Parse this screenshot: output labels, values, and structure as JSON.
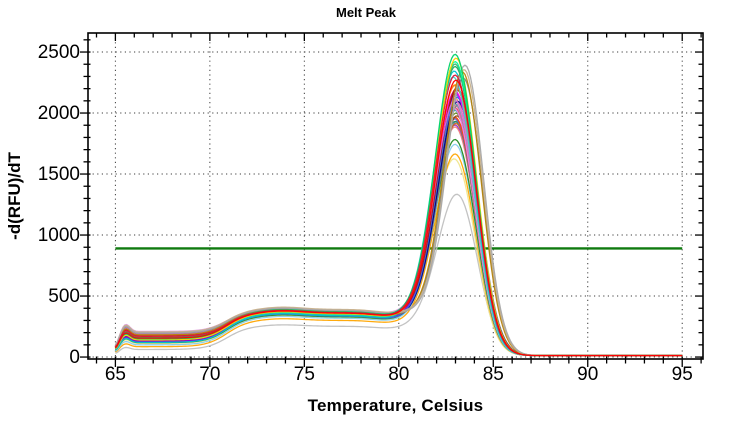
{
  "title": "Melt Peak",
  "chart_data": {
    "type": "line",
    "title": "Melt Peak",
    "xlabel": "Temperature, Celsius",
    "ylabel": "-d(RFU)/dT",
    "xlim": [
      63.55,
      96.1
    ],
    "ylim": [
      -16,
      2656
    ],
    "x_major_ticks": [
      65,
      70,
      75,
      80,
      85,
      90,
      95
    ],
    "x_minor_step": 1,
    "y_major_ticks": [
      0,
      500,
      1000,
      1500,
      2000,
      2500
    ],
    "y_minor_step": 100,
    "grid": "dotted",
    "legend": "none",
    "threshold_line": {
      "y": 890,
      "color": "#0f7a0f",
      "x_start": 65,
      "x_end": 95
    },
    "tail_end": 12,
    "series_format": "c=line color, b=baseline RFU (65-69C), s=pre-melt plateau RFU (72-80C), p=peak height RFU, t=peak temperature C, w=peak sigma C (default 1.05)",
    "series": [
      {
        "c": "#c0c0c0",
        "b": 62,
        "s": 252,
        "p": 1350,
        "t": 83.1
      },
      {
        "c": "#f0e68c",
        "b": 112,
        "s": 326,
        "p": 1640,
        "t": 82.95
      },
      {
        "c": "#ffa500",
        "b": 85,
        "s": 300,
        "p": 1680,
        "t": 83.0
      },
      {
        "c": "#87ceeb",
        "b": 100,
        "s": 318,
        "p": 1760,
        "t": 83.0
      },
      {
        "c": "#228b22",
        "b": 118,
        "s": 330,
        "p": 1800,
        "t": 83.0
      },
      {
        "c": "#9932cc",
        "b": 136,
        "s": 344,
        "p": 1920,
        "t": 83.0
      },
      {
        "c": "#f08080",
        "b": 166,
        "s": 360,
        "p": 1905,
        "t": 83.0
      },
      {
        "c": "#4682b4",
        "b": 128,
        "s": 336,
        "p": 1955,
        "t": 83.1
      },
      {
        "c": "#bdb76b",
        "b": 172,
        "s": 364,
        "p": 1975,
        "t": 83.0
      },
      {
        "c": "#2e8b57",
        "b": 146,
        "s": 349,
        "p": 1950,
        "t": 83.0
      },
      {
        "c": "#d2691e",
        "b": 156,
        "s": 357,
        "p": 1935,
        "t": 83.05
      },
      {
        "c": "#6a5acd",
        "b": 142,
        "s": 346,
        "p": 1970,
        "t": 83.0
      },
      {
        "c": "#ff4500",
        "b": 152,
        "s": 354,
        "p": 1985,
        "t": 83.0
      },
      {
        "c": "#8b4513",
        "b": 158,
        "s": 356,
        "p": 2000,
        "t": 83.1
      },
      {
        "c": "#6b8e23",
        "b": 148,
        "s": 350,
        "p": 2020,
        "t": 83.05
      },
      {
        "c": "#20b2aa",
        "b": 140,
        "s": 348,
        "p": 2040,
        "t": 83.0
      },
      {
        "c": "#cd5c5c",
        "b": 150,
        "s": 352,
        "p": 2060,
        "t": 83.0
      },
      {
        "c": "#ff69b4",
        "b": 165,
        "s": 358,
        "p": 2080,
        "t": 83.0
      },
      {
        "c": "#808080",
        "b": 190,
        "s": 378,
        "p": 2100,
        "t": 83.2
      },
      {
        "c": "#ee82ee",
        "b": 200,
        "s": 380,
        "p": 2055,
        "t": 82.95
      },
      {
        "c": "#5f9ea0",
        "b": 132,
        "s": 340,
        "p": 2095,
        "t": 83.0
      },
      {
        "c": "#dda0dd",
        "b": 210,
        "s": 385,
        "p": 2115,
        "t": 83.0
      },
      {
        "c": "#e9967a",
        "b": 162,
        "s": 358,
        "p": 2140,
        "t": 83.0
      },
      {
        "c": "#7b68ee",
        "b": 138,
        "s": 345,
        "p": 2165,
        "t": 83.05
      },
      {
        "c": "#00008b",
        "b": 135,
        "s": 342,
        "p": 2120,
        "t": 83.15
      },
      {
        "c": "#4169e1",
        "b": 125,
        "s": 338,
        "p": 2150,
        "t": 83.1
      },
      {
        "c": "#9400d3",
        "b": 130,
        "s": 345,
        "p": 2180,
        "t": 83.05
      },
      {
        "c": "#ff00ff",
        "b": 185,
        "s": 372,
        "p": 2200,
        "t": 83.0
      },
      {
        "c": "#800000",
        "b": 176,
        "s": 368,
        "p": 2215,
        "t": 83.1
      },
      {
        "c": "#b22222",
        "b": 175,
        "s": 370,
        "p": 2230,
        "t": 83.1
      },
      {
        "c": "#ff6347",
        "b": 168,
        "s": 362,
        "p": 2245,
        "t": 83.0
      },
      {
        "c": "#ff8c00",
        "b": 145,
        "s": 350,
        "p": 2250,
        "t": 83.0
      },
      {
        "c": "#da70d6",
        "b": 188,
        "s": 374,
        "p": 2125,
        "t": 83.0
      },
      {
        "c": "#48d1cc",
        "b": 144,
        "s": 347,
        "p": 2310,
        "t": 82.9
      },
      {
        "c": "#00c5cd",
        "b": 120,
        "s": 340,
        "p": 2360,
        "t": 82.95
      },
      {
        "c": "#708090",
        "b": 196,
        "s": 376,
        "p": 2335,
        "t": 83.45,
        "w": 1.0
      },
      {
        "c": "#b8860b",
        "b": 182,
        "s": 370,
        "p": 2380,
        "t": 83.4,
        "w": 1.0
      },
      {
        "c": "#c9b18a",
        "b": 205,
        "s": 390,
        "p": 2410,
        "t": 83.5,
        "w": 0.98
      },
      {
        "c": "#a8a8a8",
        "b": 198,
        "s": 382,
        "p": 2450,
        "t": 83.55,
        "w": 0.98
      },
      {
        "c": "#1fae5e",
        "b": 160,
        "s": 360,
        "p": 2400,
        "t": 83.0
      },
      {
        "c": "#3cb371",
        "b": 149,
        "s": 351,
        "p": 2420,
        "t": 83.0
      },
      {
        "c": "#00fa9a",
        "b": 154,
        "s": 352,
        "p": 2440,
        "t": 83.0
      },
      {
        "c": "#ffd400",
        "b": 140,
        "s": 355,
        "p": 2470,
        "t": 83.05
      },
      {
        "c": "#00d26a",
        "b": 150,
        "s": 370,
        "p": 2500,
        "t": 83.0
      },
      {
        "c": "#dc143c",
        "b": 170,
        "s": 365,
        "p": 2330,
        "t": 83.0
      },
      {
        "c": "#ff0000",
        "b": 155,
        "s": 360,
        "p": 2290,
        "t": 83.05
      }
    ]
  }
}
